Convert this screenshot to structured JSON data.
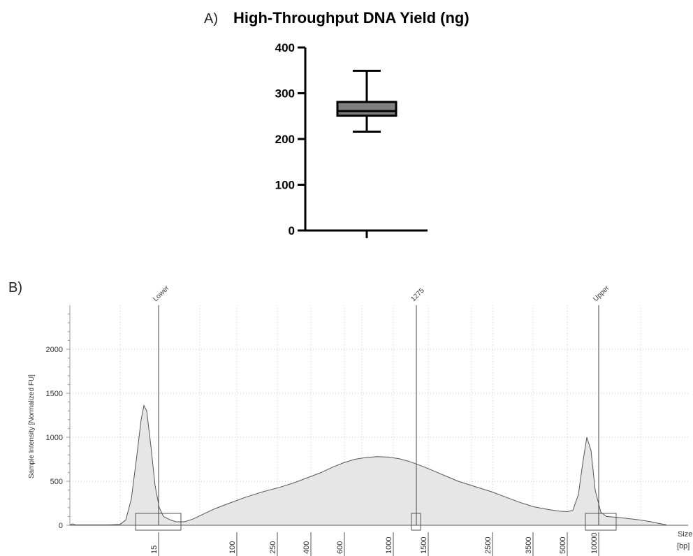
{
  "panel_a": {
    "label": "A)",
    "title": "High-Throughput DNA Yield (ng)"
  },
  "panel_b": {
    "label": "B)",
    "y_axis_title": "Sample Intensity [Normalized FU]",
    "x_axis_title_line1": "Size",
    "x_axis_title_line2": "[bp]"
  },
  "chart_data": [
    {
      "type": "box",
      "title": "High-Throughput DNA Yield (ng)",
      "ylim": [
        0,
        400
      ],
      "yticks": [
        0,
        100,
        200,
        300,
        400
      ],
      "box": {
        "min": 216,
        "q1": 251,
        "median": 261,
        "q3": 281,
        "max": 349
      },
      "box_color": "#7f7f7f",
      "grid": false
    },
    {
      "type": "area",
      "ylabel": "Sample Intensity [Normalized FU]",
      "xlabel": "Size [bp]",
      "ylim": [
        0,
        2500
      ],
      "yticks": [
        0,
        500,
        1000,
        1500,
        2000
      ],
      "x_tick_labels": [
        "15",
        "100",
        "250",
        "400",
        "600",
        "1000",
        "1500",
        "2500",
        "3500",
        "5000",
        "10000"
      ],
      "peaks": [
        {
          "label": "Lower",
          "size_bp": 15,
          "value": 1360
        },
        {
          "label": "1275",
          "size_bp": 1275,
          "value": 780
        },
        {
          "label": "Upper",
          "size_bp": 10000,
          "value": 1000
        }
      ],
      "trace": [
        [
          0.0,
          5
        ],
        [
          1.0,
          15
        ],
        [
          2.0,
          5
        ],
        [
          6.0,
          5
        ],
        [
          14.0,
          5
        ],
        [
          18.0,
          10
        ],
        [
          20.0,
          60
        ],
        [
          22.0,
          300
        ],
        [
          24.0,
          800
        ],
        [
          25.5,
          1200
        ],
        [
          26.5,
          1360
        ],
        [
          27.5,
          1300
        ],
        [
          29.0,
          900
        ],
        [
          30.5,
          450
        ],
        [
          32.0,
          200
        ],
        [
          33.5,
          100
        ],
        [
          36.0,
          60
        ],
        [
          38.0,
          40
        ],
        [
          41.0,
          40
        ],
        [
          44.0,
          70
        ],
        [
          48.0,
          130
        ],
        [
          52.0,
          190
        ],
        [
          57.0,
          250
        ],
        [
          63.0,
          320
        ],
        [
          69.0,
          380
        ],
        [
          75.0,
          430
        ],
        [
          80.0,
          480
        ],
        [
          85.0,
          540
        ],
        [
          90.0,
          600
        ],
        [
          94.0,
          660
        ],
        [
          98.0,
          710
        ],
        [
          102.0,
          750
        ],
        [
          106.0,
          770
        ],
        [
          110.0,
          780
        ],
        [
          114.0,
          775
        ],
        [
          118.0,
          755
        ],
        [
          122.0,
          720
        ],
        [
          127.0,
          660
        ],
        [
          133.0,
          580
        ],
        [
          139.0,
          500
        ],
        [
          145.0,
          440
        ],
        [
          151.0,
          380
        ],
        [
          156.0,
          320
        ],
        [
          161.0,
          260
        ],
        [
          166.0,
          210
        ],
        [
          171.0,
          180
        ],
        [
          175.0,
          160
        ],
        [
          178.0,
          155
        ],
        [
          180.0,
          170
        ],
        [
          182.0,
          350
        ],
        [
          183.5,
          700
        ],
        [
          185.0,
          1000
        ],
        [
          186.5,
          850
        ],
        [
          188.0,
          400
        ],
        [
          190.0,
          150
        ],
        [
          192.0,
          100
        ],
        [
          196.0,
          90
        ],
        [
          200.0,
          75
        ],
        [
          204.0,
          60
        ],
        [
          208.0,
          40
        ],
        [
          211.0,
          20
        ],
        [
          213.5,
          5
        ]
      ],
      "grid": true,
      "fill_color": "#e6e6e6"
    }
  ]
}
